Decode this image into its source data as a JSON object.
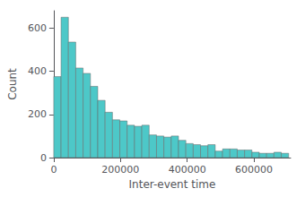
{
  "chart_data": {
    "type": "histogram",
    "bins": [
      0,
      22000,
      44000,
      66000,
      88000,
      110000,
      132000,
      154000,
      176000,
      198000,
      220000,
      242000,
      264000,
      286000,
      308000,
      330000,
      352000,
      374000,
      396000,
      418000,
      440000,
      462000,
      484000,
      506000,
      528000,
      550000,
      572000,
      594000,
      616000,
      638000,
      660000,
      682000,
      704000
    ],
    "values": [
      375,
      650,
      535,
      415,
      390,
      330,
      265,
      210,
      175,
      170,
      150,
      145,
      150,
      105,
      100,
      95,
      100,
      80,
      65,
      60,
      55,
      60,
      30,
      40,
      40,
      35,
      35,
      25,
      20,
      20,
      25,
      20
    ],
    "color": "#4DC8C8",
    "xlabel": "Inter-event time",
    "ylabel": "Count",
    "xlim": [
      0,
      710000
    ],
    "ylim": [
      0,
      680
    ],
    "xticks": [
      0,
      200000,
      400000,
      600000
    ],
    "yticks": [
      0,
      200,
      400,
      600
    ],
    "grid": false
  }
}
